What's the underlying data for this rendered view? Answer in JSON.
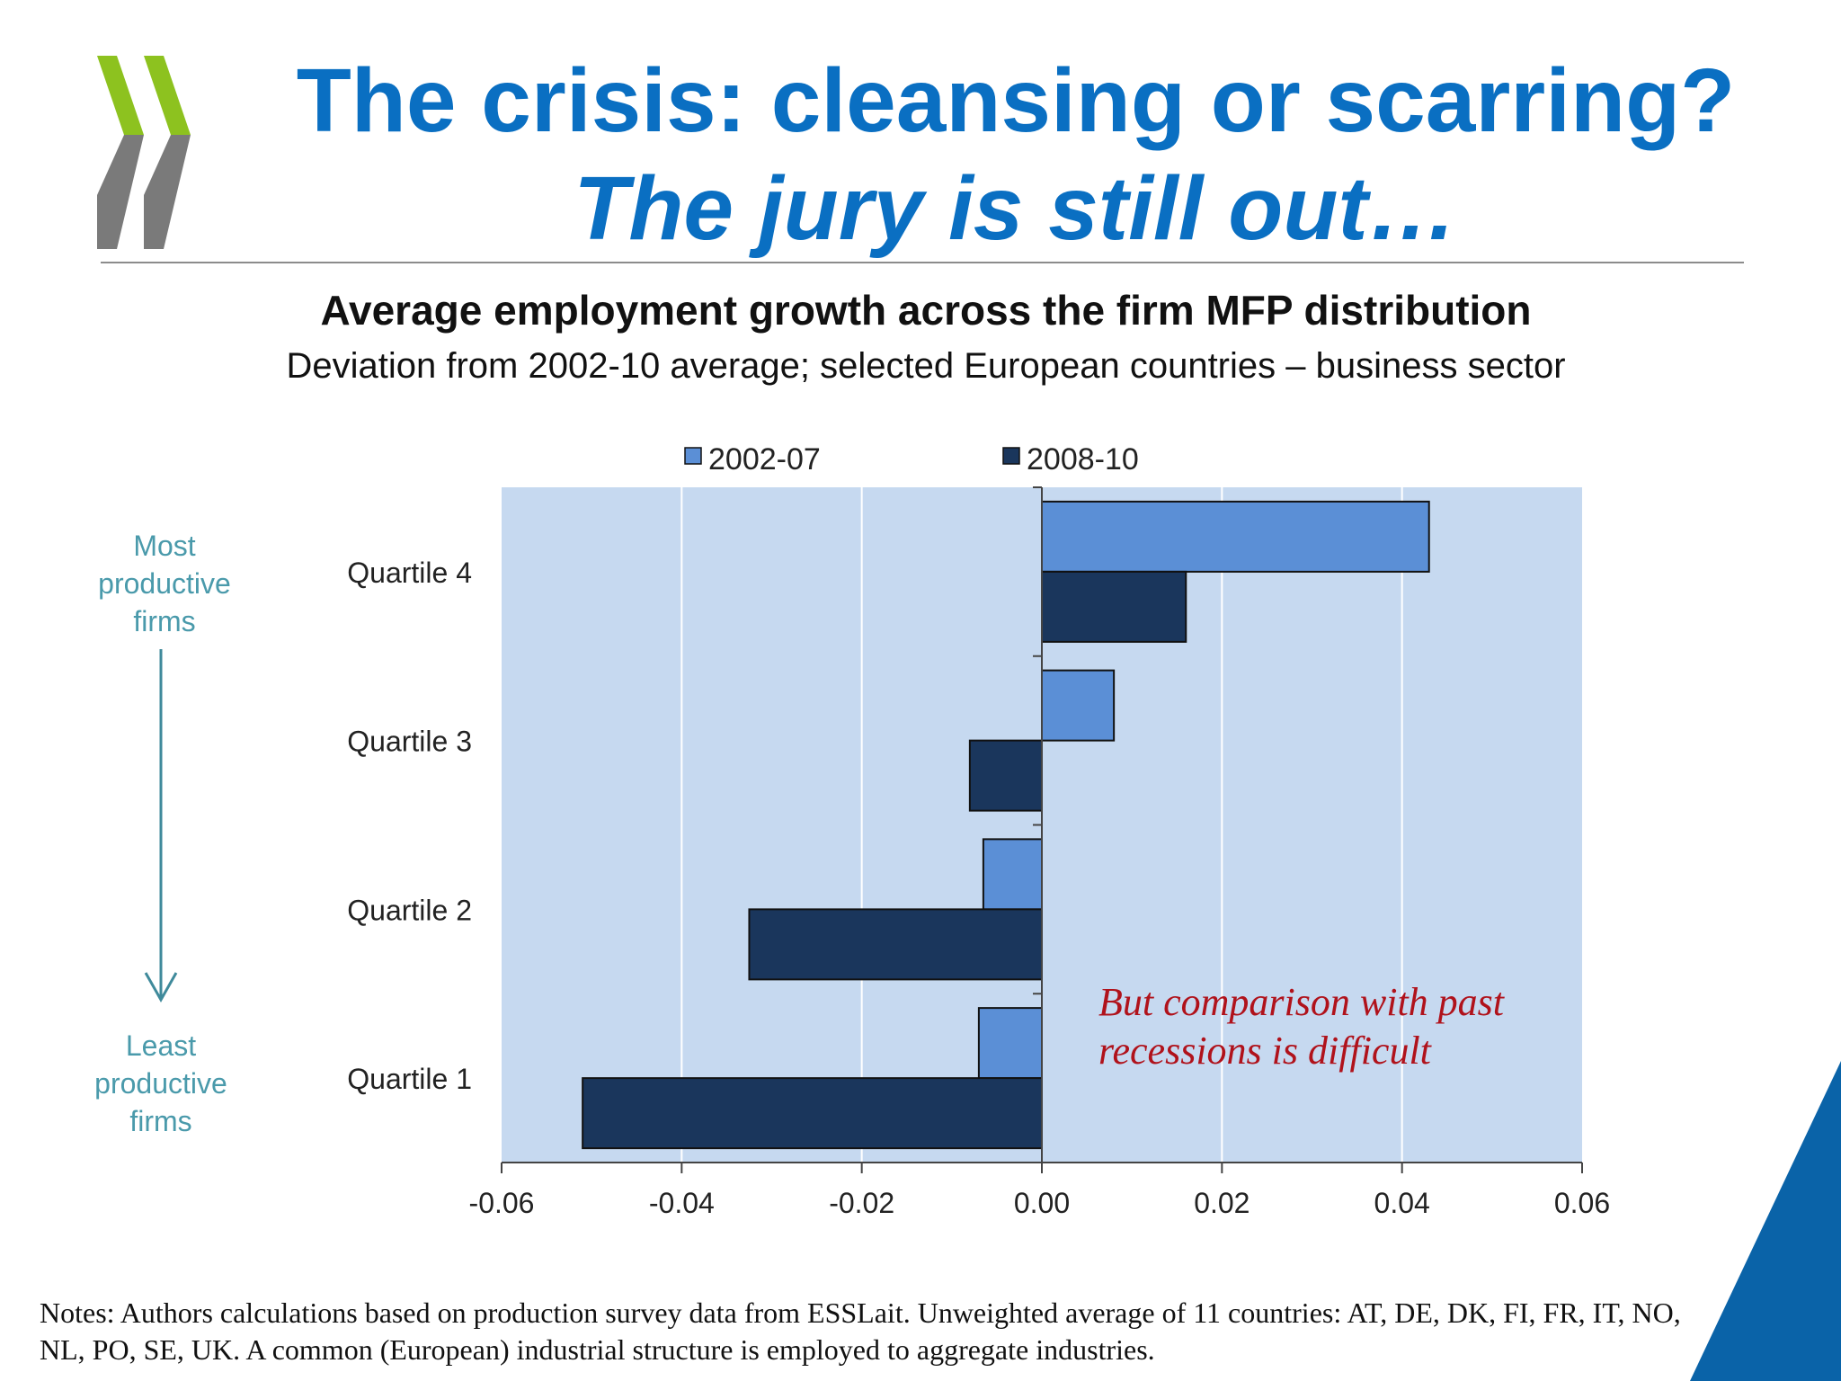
{
  "slide": {
    "title_line1": "The crisis: cleansing or scarring?",
    "title_line2": "The jury is still out…",
    "annotation": "But comparison with past recessions is difficult",
    "notes": "Notes: Authors calculations based on production survey data from ESSLait. Unweighted average of  11 countries: AT, DE, DK, FI, FR, IT, NO, NL, PO, SE, UK.  A common (European) industrial structure is employed to aggregate industries.",
    "side_top": [
      "Most",
      "productive",
      "firms"
    ],
    "side_bottom": [
      "Least",
      "productive",
      "firms"
    ],
    "colors": {
      "title": "#0a6fc2",
      "logo_green": "#8dc21f",
      "logo_gray": "#7a7a7a",
      "corner": "#0a63a8"
    }
  },
  "chart_data": {
    "type": "bar",
    "orientation": "horizontal",
    "title": "Average employment growth across the firm MFP distribution",
    "subtitle": "Deviation from 2002-10 average; selected European countries – business sector",
    "categories": [
      "Quartile 4",
      "Quartile 3",
      "Quartile 2",
      "Quartile 1"
    ],
    "series": [
      {
        "name": "2002-07",
        "values": [
          0.043,
          0.008,
          -0.0065,
          -0.007
        ],
        "color": "#5b8fd6"
      },
      {
        "name": "2008-10",
        "values": [
          0.016,
          -0.008,
          -0.0325,
          -0.051
        ],
        "color": "#1a365c"
      }
    ],
    "xlim": [
      -0.06,
      0.06
    ],
    "xticks": [
      "-0.06",
      "-0.04",
      "-0.02",
      "0.00",
      "0.02",
      "0.04",
      "0.06"
    ],
    "tick_values": [
      -0.06,
      -0.04,
      -0.02,
      0,
      0.02,
      0.04,
      0.06
    ],
    "legend": "top",
    "grid": true,
    "plot_background": "#c6d9f0"
  }
}
